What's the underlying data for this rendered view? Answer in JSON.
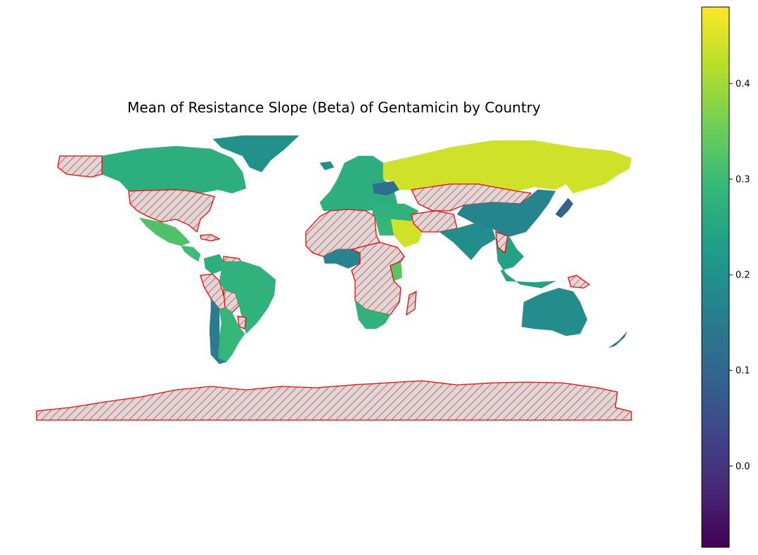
{
  "map": {
    "title": "Mean of Resistance Slope (Beta) of Gentamicin by Country",
    "colormap": "viridis",
    "nodata_style": {
      "fill": "#d9d9d9",
      "edge": "#ff0000",
      "hatch": "////"
    }
  },
  "colorbar": {
    "vmin": -0.085,
    "vmax": 0.48,
    "ticks": [
      "0.0",
      "0.1",
      "0.2",
      "0.3",
      "0.4"
    ],
    "tick_values": [
      0.0,
      0.1,
      0.2,
      0.3,
      0.4
    ]
  },
  "regions": [
    {
      "name": "Canada",
      "value": 0.27
    },
    {
      "name": "United States",
      "value": null
    },
    {
      "name": "Alaska",
      "value": null
    },
    {
      "name": "Greenland",
      "value": 0.2
    },
    {
      "name": "Mexico",
      "value": 0.32
    },
    {
      "name": "Cuba",
      "value": null
    },
    {
      "name": "Central America",
      "value": 0.3
    },
    {
      "name": "Colombia",
      "value": 0.27
    },
    {
      "name": "Venezuela",
      "value": null
    },
    {
      "name": "Peru",
      "value": null
    },
    {
      "name": "Bolivia",
      "value": null
    },
    {
      "name": "Brazil",
      "value": 0.28
    },
    {
      "name": "Paraguay",
      "value": null
    },
    {
      "name": "Argentina",
      "value": 0.29
    },
    {
      "name": "Chile",
      "value": 0.15
    },
    {
      "name": "Europe",
      "value": 0.27
    },
    {
      "name": "Iceland",
      "value": 0.2
    },
    {
      "name": "Ukraine",
      "value": 0.12
    },
    {
      "name": "Russia",
      "value": 0.44
    },
    {
      "name": "Kazakhstan / Mongolia",
      "value": null
    },
    {
      "name": "Middle East",
      "value": 0.28
    },
    {
      "name": "Saudi Arabia",
      "value": 0.44
    },
    {
      "name": "Iran / Afghanistan",
      "value": null
    },
    {
      "name": "India",
      "value": 0.19
    },
    {
      "name": "China",
      "value": 0.17
    },
    {
      "name": "Japan",
      "value": 0.09
    },
    {
      "name": "Southeast Asia",
      "value": 0.24
    },
    {
      "name": "Myanmar",
      "value": null
    },
    {
      "name": "North Africa",
      "value": null
    },
    {
      "name": "Egypt",
      "value": 0.29
    },
    {
      "name": "Nigeria",
      "value": 0.17
    },
    {
      "name": "Kenya",
      "value": 0.33
    },
    {
      "name": "Central Africa",
      "value": null
    },
    {
      "name": "South Africa",
      "value": 0.28
    },
    {
      "name": "Madagascar",
      "value": null
    },
    {
      "name": "Australia",
      "value": 0.19
    },
    {
      "name": "New Zealand",
      "value": 0.12
    },
    {
      "name": "Papua New Guinea",
      "value": null
    },
    {
      "name": "Antarctica",
      "value": null
    }
  ]
}
